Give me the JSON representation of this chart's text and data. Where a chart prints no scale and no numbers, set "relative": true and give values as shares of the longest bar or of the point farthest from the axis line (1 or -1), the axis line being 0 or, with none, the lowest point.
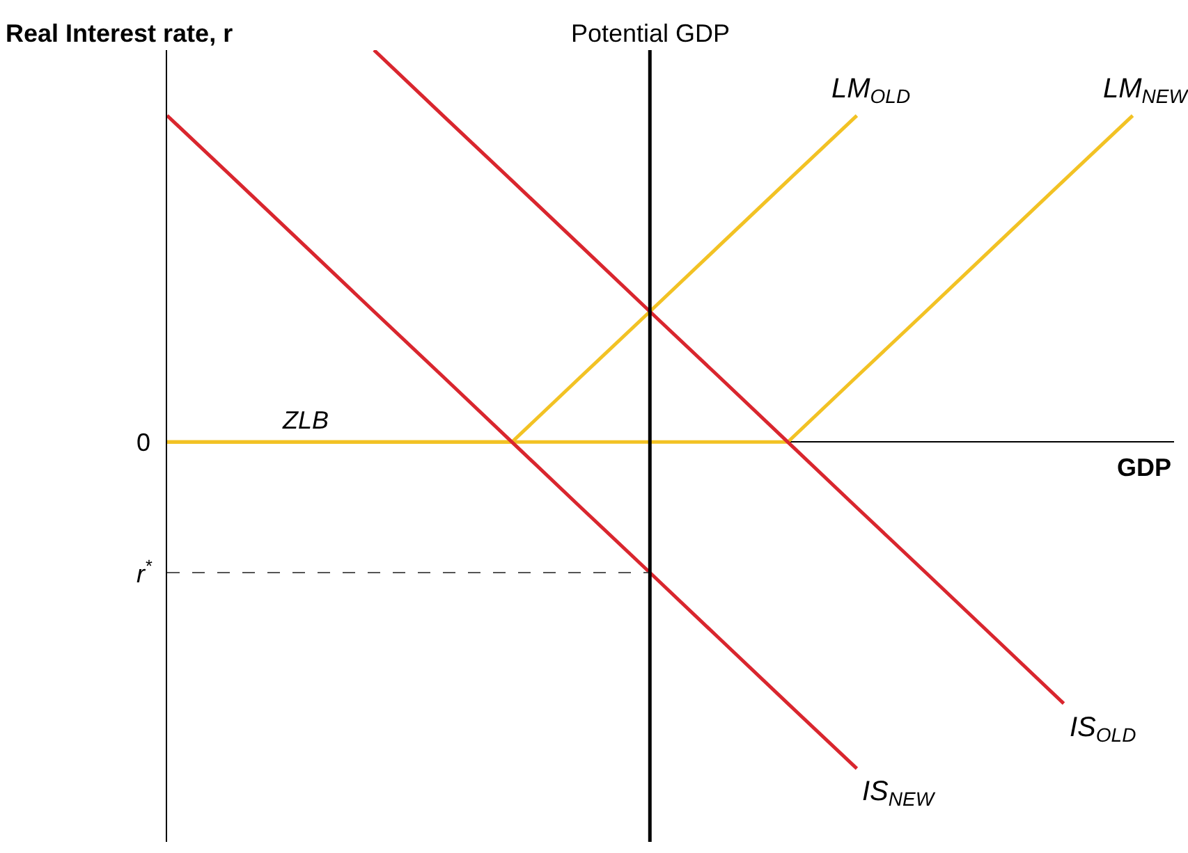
{
  "chart_data": {
    "type": "line",
    "relative": true,
    "xlabel": "GDP",
    "ylabel": "Real Interest rate, r",
    "grid": false,
    "legend": false,
    "marker": "none",
    "line_style": "solid",
    "categories": [
      null,
      null,
      null,
      null,
      null,
      null,
      null,
      null,
      null,
      null,
      null,
      null,
      null,
      null,
      null
    ],
    "series": [
      {
        "name": "LM$_{OLD}$",
        "color": "#f2c224",
        "values": [
          0,
          0,
          0,
          0,
          0,
          0,
          0.167,
          0.333,
          0.5,
          0.667,
          0.833,
          null,
          null,
          null,
          null
        ]
      },
      {
        "name": "LM$_{NEW}$",
        "color": "#f2c224",
        "values": [
          0,
          0,
          0,
          0,
          0,
          0,
          0,
          0,
          0,
          0,
          0.167,
          0.333,
          0.5,
          0.667,
          0.833
        ]
      },
      {
        "name": "IS$_{OLD}$",
        "color": "#d9262e",
        "values": [
          null,
          null,
          null,
          1,
          0.833,
          0.667,
          0.5,
          0.333,
          0.167,
          0,
          -0.167,
          -0.333,
          -0.5,
          -0.667,
          null
        ]
      },
      {
        "name": "IS$_{NEW}$",
        "color": "#d9262e",
        "values": [
          0.833,
          0.667,
          0.5,
          0.333,
          0.167,
          0,
          -0.167,
          -0.333,
          -0.5,
          -0.667,
          -0.833,
          null,
          null,
          null,
          null
        ]
      }
    ],
    "ref_lines": [
      {
        "axis": "y",
        "value": -0.333,
        "label": "r$^{*}$",
        "color": "#555555",
        "line_style": "dashed"
      }
    ],
    "annotations": [
      "0",
      "ZLB",
      "Potential GDP"
    ]
  }
}
